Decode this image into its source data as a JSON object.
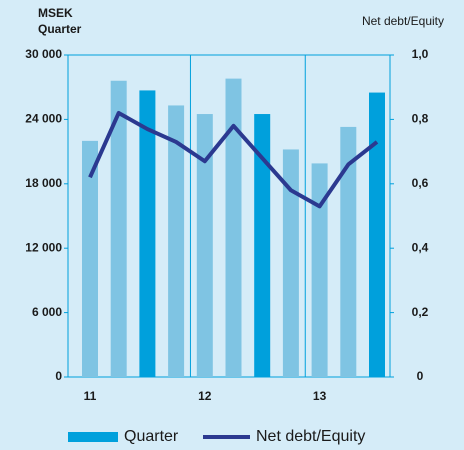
{
  "chart_data": {
    "type": "bar_line",
    "ylabel": [
      "MSEK",
      "Quarter"
    ],
    "y2label": "Net debt/Equity",
    "categories": [
      "11",
      null,
      null,
      null,
      "12",
      null,
      null,
      null,
      "13",
      null,
      null
    ],
    "series": [
      {
        "name": "Quarter",
        "color": "#00a0dc",
        "bar_colors": [
          "#7fc4e3",
          "#7fc4e3",
          "#00a0dc",
          "#7fc4e3",
          "#7fc4e3",
          "#7fc4e3",
          "#00a0dc",
          "#7fc4e3",
          "#7fc4e3",
          "#7fc4e3",
          "#00a0dc"
        ],
        "values": [
          22000,
          27600,
          26700,
          25300,
          24500,
          27800,
          24500,
          21200,
          19900,
          23300,
          26500
        ]
      },
      {
        "name": "Net debt/Equity",
        "color": "#2b3990",
        "axis": "y2",
        "values": [
          0.62,
          0.82,
          0.77,
          0.73,
          0.67,
          0.78,
          0.68,
          0.58,
          0.53,
          0.66,
          0.73
        ]
      }
    ],
    "ylim": [
      0,
      30000
    ],
    "yticks": [
      0,
      {
        "value": 6000,
        "label": "6 000"
      },
      {
        "value": 12000,
        "label": "12 000"
      },
      {
        "value": 18000,
        "label": "18 000"
      },
      {
        "value": 24000,
        "label": "24 000"
      },
      {
        "value": 30000,
        "label": "30 000"
      }
    ],
    "y2lim": [
      0,
      1
    ],
    "y2ticks": [
      0,
      {
        "value": 0.2,
        "label": "0,2"
      },
      {
        "value": 0.4,
        "label": "0,4"
      },
      {
        "value": 0.6,
        "label": "0,6"
      },
      {
        "value": 0.8,
        "label": "0,8"
      },
      {
        "value": 1,
        "label": "1,0"
      }
    ],
    "legend": "bottom"
  }
}
